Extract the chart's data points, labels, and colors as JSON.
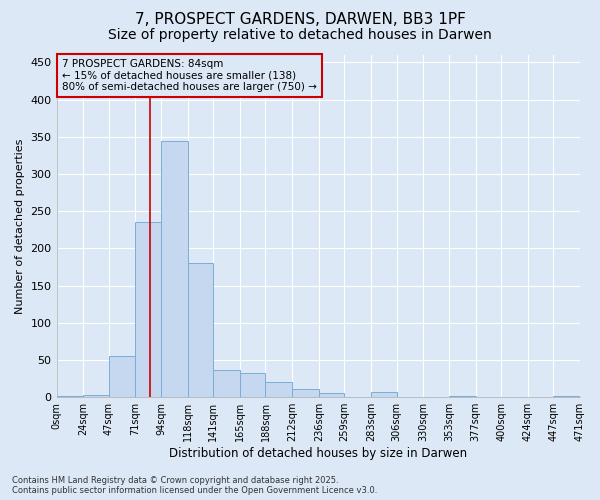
{
  "title": "7, PROSPECT GARDENS, DARWEN, BB3 1PF",
  "subtitle": "Size of property relative to detached houses in Darwen",
  "xlabel": "Distribution of detached houses by size in Darwen",
  "ylabel": "Number of detached properties",
  "bar_color": "#c5d8f0",
  "bar_edge_color": "#7aaed6",
  "background_color": "#dce8f5",
  "grid_color": "#ffffff",
  "bin_edges": [
    0,
    24,
    47,
    71,
    94,
    118,
    141,
    165,
    188,
    212,
    236,
    259,
    283,
    306,
    330,
    353,
    377,
    400,
    424,
    447,
    471
  ],
  "bar_heights": [
    2,
    3,
    55,
    235,
    345,
    180,
    37,
    33,
    20,
    11,
    5,
    0,
    7,
    0,
    0,
    2,
    0,
    0,
    0,
    2
  ],
  "property_size": 84,
  "vline_color": "#cc0000",
  "annotation_text": "7 PROSPECT GARDENS: 84sqm\n← 15% of detached houses are smaller (138)\n80% of semi-detached houses are larger (750) →",
  "annotation_box_color": "#cc0000",
  "annotation_text_color": "#000000",
  "ylim": [
    0,
    460
  ],
  "yticks": [
    0,
    50,
    100,
    150,
    200,
    250,
    300,
    350,
    400,
    450
  ],
  "footer_line1": "Contains HM Land Registry data © Crown copyright and database right 2025.",
  "footer_line2": "Contains public sector information licensed under the Open Government Licence v3.0.",
  "title_fontsize": 11,
  "subtitle_fontsize": 10,
  "tick_label_fontsize": 7,
  "ylabel_fontsize": 8,
  "xlabel_fontsize": 8.5,
  "footer_fontsize": 6,
  "annotation_fontsize": 7.5
}
